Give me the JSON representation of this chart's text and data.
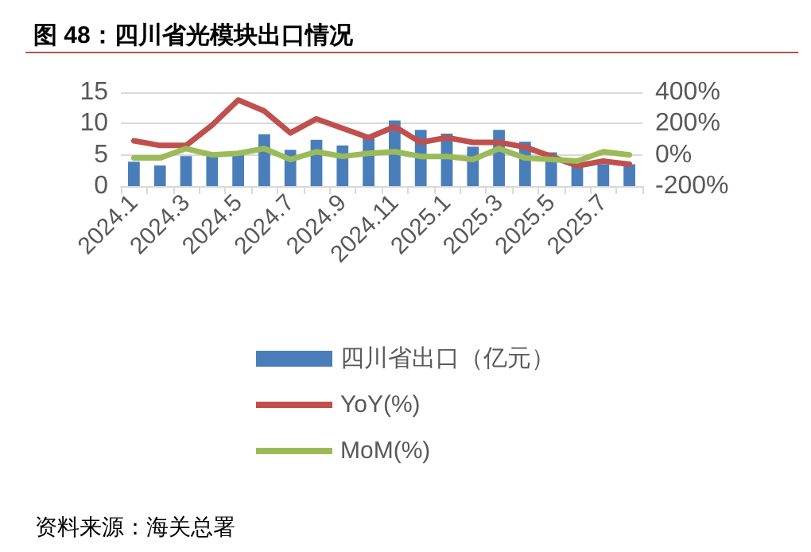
{
  "chart_data": {
    "type": "bar",
    "title": "图 48：四川省光模块出口情况",
    "categories": [
      "2024.1",
      null,
      "2024.3",
      null,
      "2024.5",
      null,
      "2024.7",
      null,
      "2024.9",
      null,
      "2024.11",
      null,
      "2025.1",
      null,
      "2025.3",
      null,
      "2025.5",
      null,
      "2025.7",
      null
    ],
    "series": [
      {
        "name": "四川省出口（亿元）",
        "color": "#4a7ebb",
        "values": [
          3.9,
          3.3,
          4.8,
          4.8,
          5.0,
          8.3,
          5.8,
          7.4,
          6.5,
          7.9,
          10.5,
          9.0,
          8.4,
          6.3,
          9.0,
          7.1,
          5.4,
          3.2,
          3.5,
          3.5
        ]
      },
      {
        "name": "YoY(%)",
        "type": "line",
        "axis": "y2",
        "color": "#c0504d",
        "values": [
          90,
          60,
          60,
          190,
          350,
          280,
          140,
          230,
          170,
          110,
          180,
          80,
          110,
          80,
          80,
          50,
          -10,
          -70,
          -40,
          -60
        ]
      },
      {
        "name": "MoM(%)",
        "type": "line",
        "axis": "y2",
        "color": "#9bbb59",
        "values": [
          -20,
          -20,
          40,
          0,
          10,
          40,
          -30,
          20,
          -10,
          10,
          20,
          -10,
          -10,
          -30,
          40,
          -20,
          -30,
          -40,
          20,
          0
        ]
      }
    ],
    "ylim": [
      0,
      15
    ],
    "yticks": [
      0,
      5,
      10,
      15
    ],
    "y2lim": [
      -200,
      400
    ],
    "y2ticks": [
      {
        "value": -200,
        "label": "-200%"
      },
      {
        "value": 0,
        "label": "0%"
      },
      {
        "value": 200,
        "label": "200%"
      },
      {
        "value": 400,
        "label": "400%"
      }
    ],
    "grid": "y",
    "legend": "bottom",
    "marker": "none",
    "line_style": "solid",
    "annotations": [
      "资料来源：海关总署"
    ]
  }
}
